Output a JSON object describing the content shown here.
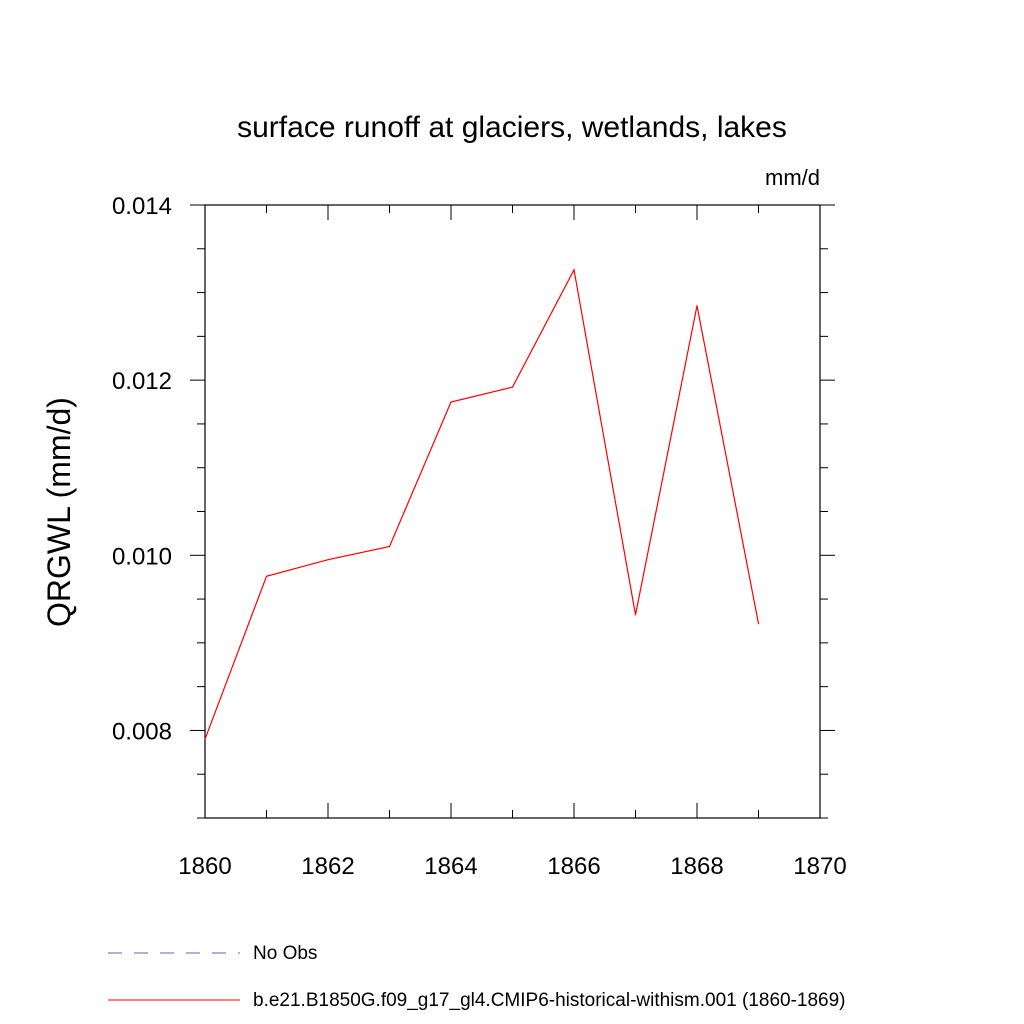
{
  "chart_data": {
    "type": "line",
    "title": "surface runoff at glaciers, wetlands, lakes",
    "units_label": "mm/d",
    "xlabel": "",
    "ylabel": "QRGWL  (mm/d)",
    "xlim": [
      1860,
      1870
    ],
    "ylim": [
      0.007,
      0.014
    ],
    "x_ticks": [
      "1860",
      "1862",
      "1864",
      "1866",
      "1868",
      "1870"
    ],
    "y_ticks": [
      "0.008",
      "0.010",
      "0.012",
      "0.014"
    ],
    "grid": false,
    "legend_position": "bottom",
    "series": [
      {
        "name": "b.e21.B1850G.f09_g17_gl4.CMIP6-historical-withism.001 (1860-1869)",
        "color": "#ff0000",
        "style": "solid",
        "x": [
          1860,
          1861,
          1862,
          1863,
          1864,
          1865,
          1866,
          1867,
          1868,
          1869
        ],
        "y": [
          0.0079,
          0.00976,
          0.00995,
          0.0101,
          0.01175,
          0.01192,
          0.01326,
          0.00932,
          0.01285,
          0.00922
        ]
      }
    ],
    "legend": [
      {
        "label": "No Obs",
        "color": "#6a5acd",
        "style": "dashed"
      },
      {
        "label": "b.e21.B1850G.f09_g17_gl4.CMIP6-historical-withism.001 (1860-1869)",
        "color": "#ff0000",
        "style": "solid"
      }
    ]
  }
}
